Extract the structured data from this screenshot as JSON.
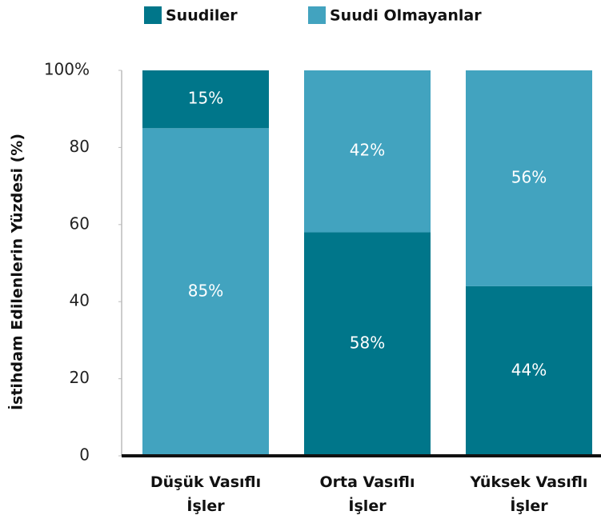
{
  "chart_data": {
    "type": "stacked_bar",
    "y_label": "İstihdam Edilenlerin Yüzdesi (%)",
    "categories": [
      "Düşük Vasıflı İşler",
      "Orta Vasıflı İşler",
      "Yüksek Vasıflı İşler"
    ],
    "series": [
      {
        "name": "Suudiler",
        "color": "#00768a",
        "values": [
          15,
          58,
          44
        ],
        "value_labels": [
          "15%",
          "58%",
          "44%"
        ]
      },
      {
        "name": "Suudi Olmayanlar",
        "color": "#42a3bf",
        "values": [
          85,
          42,
          56
        ],
        "value_labels": [
          "85%",
          "42%",
          "56%"
        ]
      }
    ],
    "stack_bottom": [
      "Suudi Olmayanlar",
      "Suudiler",
      "Suudiler"
    ],
    "ylim": [
      0,
      100
    ],
    "yticks": [
      0,
      20,
      40,
      60,
      80,
      {
        "value": 100,
        "label": "100%"
      }
    ],
    "legend": "top"
  }
}
